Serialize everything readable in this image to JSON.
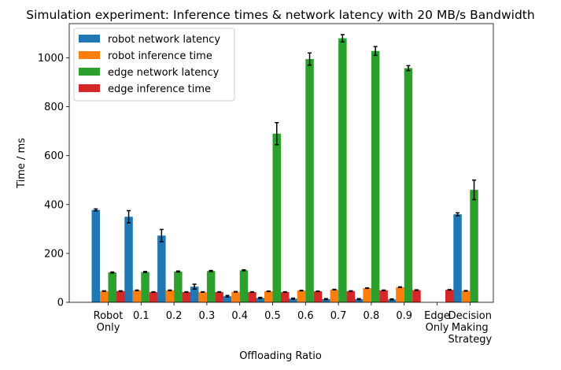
{
  "chart_data": {
    "type": "bar",
    "title": "Simulation experiment: Inference times & network latency with 20 MB/s Bandwidth",
    "xlabel": "Offloading Ratio",
    "ylabel": "Time / ms",
    "ylim": [
      0,
      1140
    ],
    "yticks": [
      0,
      200,
      400,
      600,
      800,
      1000
    ],
    "categories": [
      [
        "Robot",
        "Only"
      ],
      [
        "0.1"
      ],
      [
        "0.2"
      ],
      [
        "0.3"
      ],
      [
        "0.4"
      ],
      [
        "0.5"
      ],
      [
        "0.6"
      ],
      [
        "0.7"
      ],
      [
        "0.8"
      ],
      [
        "0.9"
      ],
      [
        "Edge",
        "Only"
      ],
      [
        "Decision",
        "Making",
        "Strategy"
      ]
    ],
    "legend_position": "upper-left",
    "series": [
      {
        "name": "robot network latency",
        "color": "#1f77b4",
        "values": [
          378,
          350,
          273,
          64,
          25,
          18,
          15,
          13,
          13,
          12,
          0,
          360
        ],
        "errors": [
          4,
          25,
          25,
          10,
          3,
          2,
          2,
          2,
          2,
          2,
          0,
          6
        ]
      },
      {
        "name": "robot inference time",
        "color": "#ff7f0e",
        "values": [
          46,
          49,
          49,
          42,
          43,
          45,
          48,
          52,
          58,
          62,
          0,
          47
        ],
        "errors": [
          1,
          1,
          1,
          1,
          1,
          1,
          1,
          1,
          1,
          1,
          0,
          1
        ]
      },
      {
        "name": "edge network latency",
        "color": "#2ca02c",
        "values": [
          122,
          124,
          126,
          128,
          131,
          690,
          995,
          1080,
          1028,
          958,
          0,
          460
        ],
        "errors": [
          2,
          2,
          2,
          2,
          2,
          45,
          25,
          15,
          18,
          10,
          0,
          40
        ]
      },
      {
        "name": "edge inference time",
        "color": "#d62728",
        "values": [
          46,
          42,
          42,
          42,
          42,
          42,
          45,
          46,
          49,
          50,
          51,
          0
        ],
        "errors": [
          1,
          1,
          1,
          1,
          1,
          1,
          1,
          1,
          1,
          1,
          1,
          0
        ]
      }
    ]
  }
}
